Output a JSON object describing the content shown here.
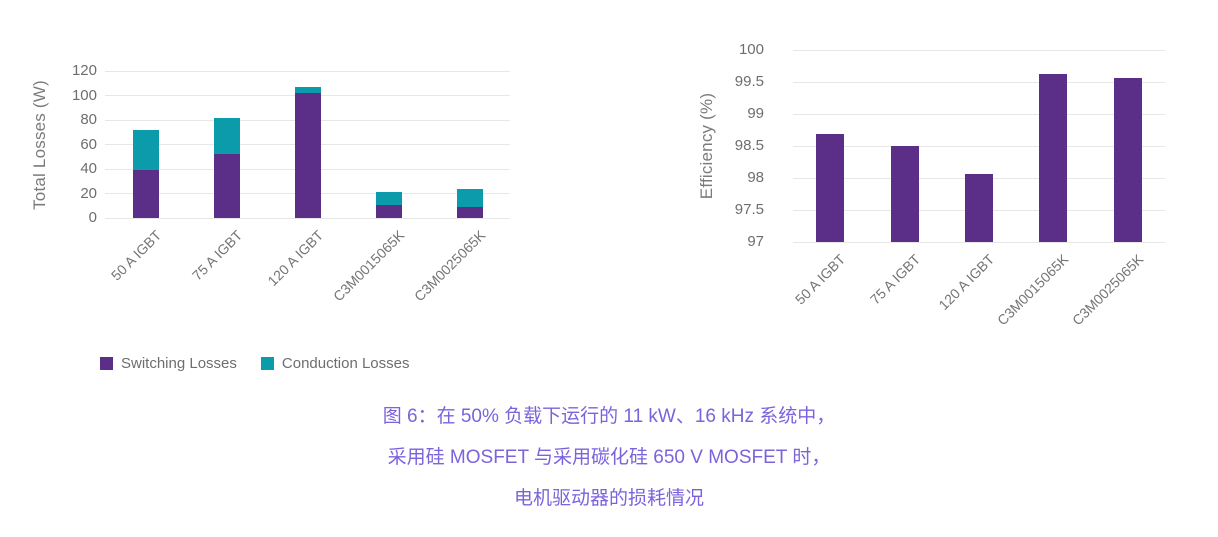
{
  "caption": {
    "color": "#7c63db",
    "lines": [
      "图 6：在 50% 负载下运行的 11 kW、16 kHz 系统中，",
      "采用硅 MOSFET 与采用碳化硅 650 V MOSFET 时，",
      "电机驱动器的损耗情况"
    ]
  },
  "colors": {
    "purple": "#5b2e87",
    "teal": "#0b9baa",
    "axis_text": "#6e6e6e",
    "axis_title": "#7b7b7b",
    "gridline": "#e7e7e7",
    "background": "#ffffff"
  },
  "chart_data": [
    {
      "type": "bar",
      "subtype": "stacked",
      "title": "",
      "xlabel": "",
      "ylabel": "Total Losses (W)",
      "categories": [
        "50 A IGBT",
        "75 A IGBT",
        "120 A IGBT",
        "C3M0015065K",
        "C3M0025065K"
      ],
      "series": [
        {
          "name": "Switching Losses",
          "color": "#5b2e87",
          "values": [
            39,
            52,
            102,
            11,
            9
          ]
        },
        {
          "name": "Conduction Losses",
          "color": "#0b9baa",
          "values": [
            33,
            30,
            5,
            10,
            15
          ]
        }
      ],
      "totals": [
        72,
        82,
        107,
        21,
        24
      ],
      "ylim": [
        0,
        120
      ],
      "yticks": [
        {
          "value": 0,
          "label": "0"
        },
        {
          "value": 20,
          "label": "20"
        },
        {
          "value": 40,
          "label": "40"
        },
        {
          "value": 60,
          "label": "60"
        },
        {
          "value": 80,
          "label": "80"
        },
        {
          "value": 100,
          "label": "100"
        },
        {
          "value": 120,
          "label": "120"
        }
      ],
      "grid": true,
      "legend_position": "bottom"
    },
    {
      "type": "bar",
      "subtype": "simple",
      "title": "",
      "xlabel": "",
      "ylabel": "Efficiency (%)",
      "categories": [
        "50 A IGBT",
        "75 A IGBT",
        "120 A IGBT",
        "C3M0015065K",
        "C3M0025065K"
      ],
      "values": [
        98.69,
        98.5,
        98.07,
        99.63,
        99.57
      ],
      "bar_color": "#5b2e87",
      "ylim": [
        97,
        100
      ],
      "yticks": [
        {
          "value": 97,
          "label": "97"
        },
        {
          "value": 97.5,
          "label": "97.5"
        },
        {
          "value": 98,
          "label": "98"
        },
        {
          "value": 98.5,
          "label": "98.5"
        },
        {
          "value": 99,
          "label": "99"
        },
        {
          "value": 99.5,
          "label": "99.5"
        },
        {
          "value": 100,
          "label": "100"
        }
      ],
      "grid": true,
      "legend_position": "none"
    }
  ]
}
